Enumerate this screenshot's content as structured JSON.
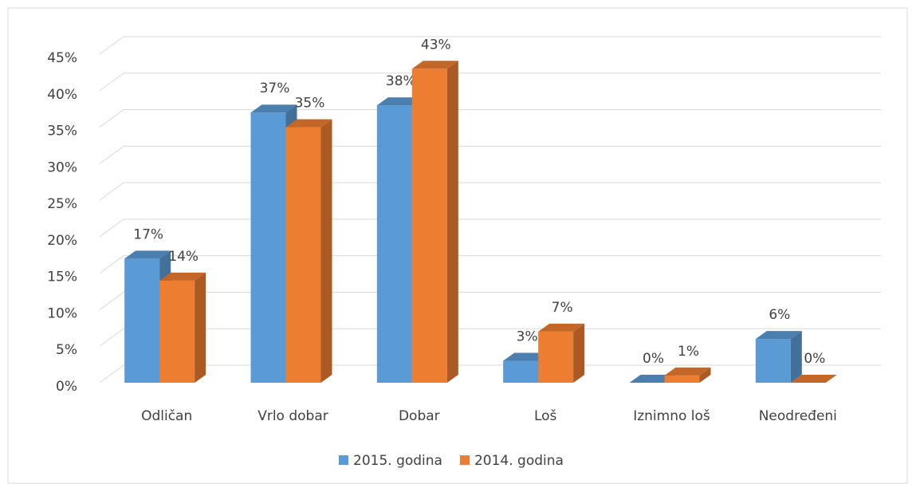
{
  "chart_data": {
    "type": "bar3d",
    "categories": [
      "Odličan",
      "Vrlo dobar",
      "Dobar",
      "Loš",
      "Iznimno loš",
      "Neodređeni"
    ],
    "series": [
      {
        "name": "2015. godina",
        "color": "#5b9bd5",
        "values": [
          17,
          37,
          38,
          3,
          0,
          6
        ],
        "value_labels": [
          "17%",
          "37%",
          "38%",
          "3%",
          "0%",
          "6%"
        ]
      },
      {
        "name": "2014. godina",
        "color": "#ed7d31",
        "values": [
          14,
          35,
          43,
          7,
          1,
          0
        ],
        "value_labels": [
          "14%",
          "35%",
          "43%",
          "7%",
          "1%",
          "0%"
        ]
      }
    ],
    "ylim": [
      0,
      45
    ],
    "yticks": [
      {
        "value": 0,
        "label": "0%"
      },
      {
        "value": 5,
        "label": "5%"
      },
      {
        "value": 10,
        "label": "10%"
      },
      {
        "value": 15,
        "label": "15%"
      },
      {
        "value": 20,
        "label": "20%"
      },
      {
        "value": 25,
        "label": "25%"
      },
      {
        "value": 30,
        "label": "30%"
      },
      {
        "value": 35,
        "label": "35%"
      },
      {
        "value": 40,
        "label": "40%"
      },
      {
        "value": 45,
        "label": "45%"
      }
    ],
    "grid": true,
    "legend": "bottom"
  }
}
